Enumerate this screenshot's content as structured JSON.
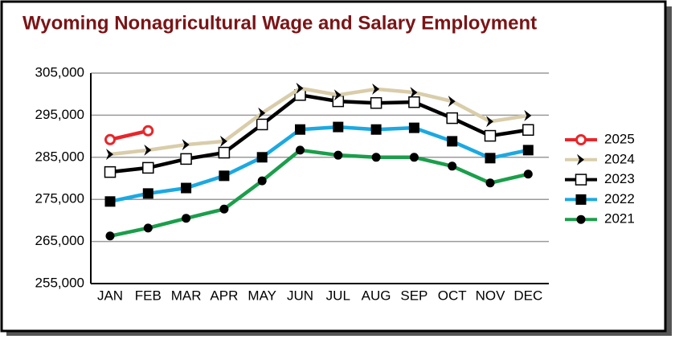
{
  "chart_data": {
    "type": "line",
    "title": "Wyoming Nonagricultural Wage and Salary Employment",
    "categories": [
      "JAN",
      "FEB",
      "MAR",
      "APR",
      "MAY",
      "JUN",
      "JUL",
      "AUG",
      "SEP",
      "OCT",
      "NOV",
      "DEC"
    ],
    "ylim": [
      255000,
      305000
    ],
    "yticks": [
      {
        "value": 255000,
        "label": "255,000"
      },
      {
        "value": 265000,
        "label": "265,000"
      },
      {
        "value": 275000,
        "label": "275,000"
      },
      {
        "value": 285000,
        "label": "285,000"
      },
      {
        "value": 295000,
        "label": "295,000"
      },
      {
        "value": 305000,
        "label": "305,000"
      }
    ],
    "grid": true,
    "legend": "right",
    "series": [
      {
        "name": "2025",
        "color": "#e8262a",
        "marker": "circle-open",
        "values": [
          289200,
          291300,
          null,
          null,
          null,
          null,
          null,
          null,
          null,
          null,
          null,
          null
        ]
      },
      {
        "name": "2024",
        "color": "#d9cdaa",
        "marker": "chevron",
        "values": [
          285700,
          286700,
          288000,
          288800,
          295500,
          301400,
          299800,
          301200,
          300400,
          298300,
          293500,
          294900
        ]
      },
      {
        "name": "2023",
        "color": "#000000",
        "marker": "square-open",
        "values": [
          281500,
          282500,
          284600,
          286100,
          292800,
          299800,
          298300,
          297900,
          298100,
          294300,
          290100,
          291500
        ]
      },
      {
        "name": "2022",
        "color": "#1ba9e1",
        "marker": "square",
        "values": [
          274500,
          276400,
          277700,
          280600,
          285000,
          291600,
          292200,
          291600,
          292000,
          288800,
          284800,
          286700
        ]
      },
      {
        "name": "2021",
        "color": "#1b9e4b",
        "marker": "circle",
        "values": [
          266300,
          268200,
          270500,
          272700,
          279400,
          286700,
          285500,
          285000,
          285000,
          282900,
          278900,
          281000
        ]
      }
    ]
  }
}
